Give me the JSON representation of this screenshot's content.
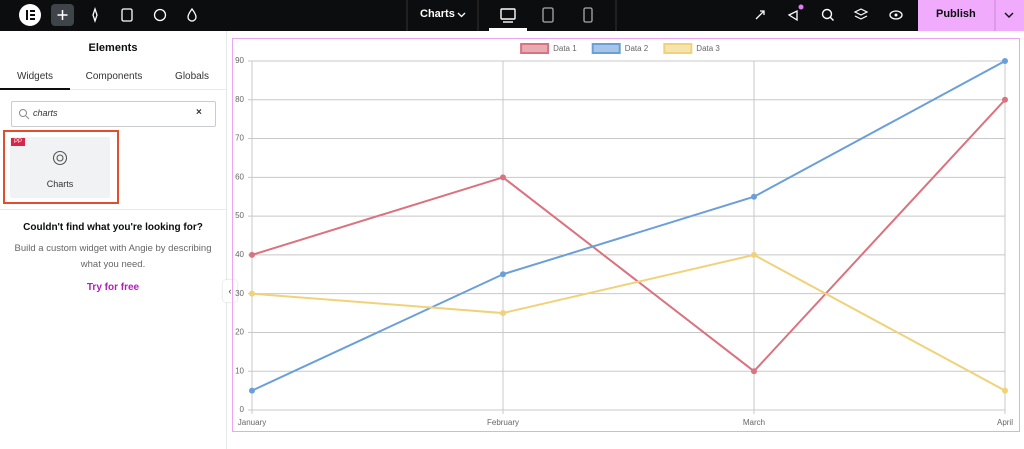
{
  "top_bar": {
    "page_title": "Charts",
    "publish": "Publish"
  },
  "panel": {
    "title": "Elements",
    "tabs": [
      "Widgets",
      "Components",
      "Globals"
    ],
    "search": "charts",
    "widget": {
      "badge": "PP",
      "label": "Charts"
    },
    "empty_title": "Couldn't find what you're looking for?",
    "empty_text": "Build a custom widget with Angie by describing what you need.",
    "link": "Try for free"
  },
  "chart_data": {
    "type": "line",
    "categories": [
      "January",
      "February",
      "March",
      "April"
    ],
    "series": [
      {
        "name": "Data 1",
        "color": "#d9737f",
        "values": [
          40,
          60,
          10,
          80
        ]
      },
      {
        "name": "Data 2",
        "color": "#6a9fd8",
        "values": [
          5,
          35,
          55,
          90
        ]
      },
      {
        "name": "Data 3",
        "color": "#f0d27a",
        "values": [
          30,
          25,
          40,
          5
        ]
      }
    ],
    "ylim": [
      0,
      90
    ],
    "yticks": [
      0,
      10,
      20,
      30,
      40,
      50,
      60,
      70,
      80,
      90
    ],
    "grid": true,
    "legend": "top"
  }
}
